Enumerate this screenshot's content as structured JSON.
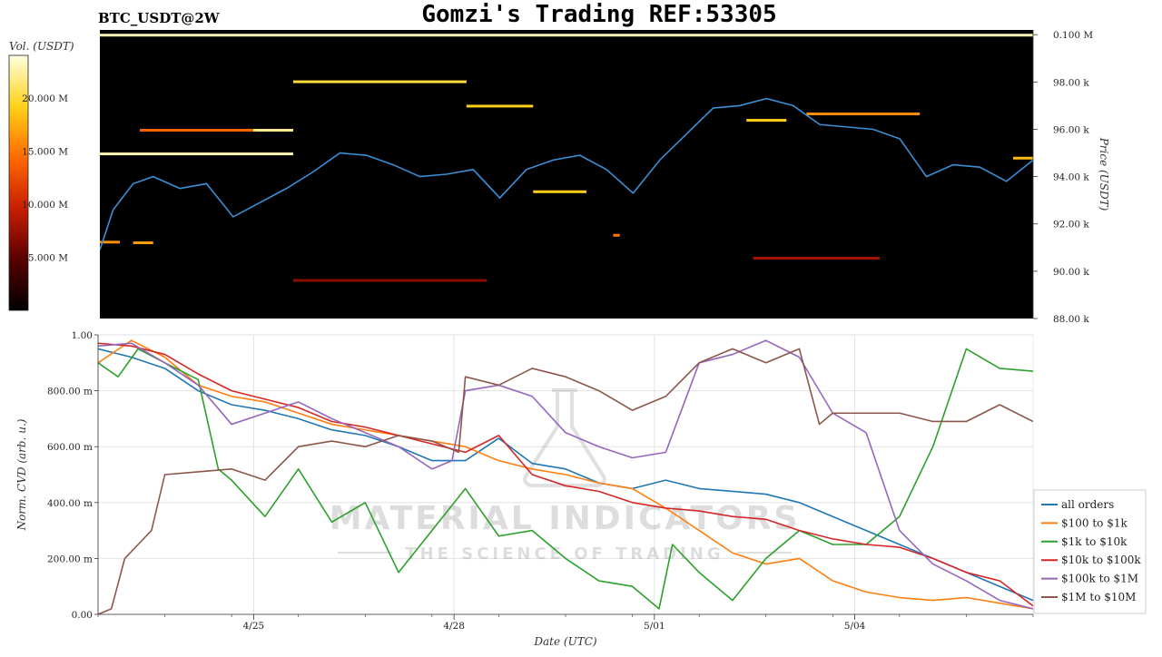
{
  "title": "Gomzi's Trading REF:53305",
  "symbol": "BTC_USDT@2W",
  "watermark": {
    "line1": "MATERIAL INDICATORS",
    "line2": "THE SCIENCE OF TRADING"
  },
  "colorbar": {
    "label": "Vol. (USDT)",
    "ticks": [
      "20.000 M",
      "15.000 M",
      "10.000 M",
      "5.000 M"
    ],
    "tick_values": [
      20,
      15,
      10,
      5
    ],
    "range": [
      0,
      24
    ],
    "colormap": [
      "#000000",
      "#5a0000",
      "#c81e00",
      "#ff6a00",
      "#ffd21a",
      "#ffffe0"
    ]
  },
  "chart_data": [
    {
      "type": "heatmap",
      "name": "orderbook-heatmap",
      "ylabel": "Price (USDT)",
      "y_ticks": [
        "0.100 M",
        "98.00 k",
        "96.00 k",
        "94.00 k",
        "92.00 k",
        "90.00 k",
        "88.00 k"
      ],
      "y_tick_values": [
        100000,
        98000,
        96000,
        94000,
        92000,
        90000,
        88000
      ],
      "ylim": [
        88000,
        100200
      ],
      "x_range": [
        0,
        14
      ],
      "price_line": {
        "color": "#3a8fd6",
        "x": [
          0,
          0.2,
          0.5,
          0.8,
          1.2,
          1.6,
          2.0,
          2.4,
          2.8,
          3.2,
          3.6,
          4.0,
          4.4,
          4.8,
          5.2,
          5.6,
          6.0,
          6.4,
          6.8,
          7.2,
          7.6,
          8.0,
          8.4,
          8.8,
          9.2,
          9.6,
          10.0,
          10.4,
          10.8,
          11.2,
          11.6,
          12.0,
          12.4,
          12.8,
          13.2,
          13.6,
          14.0
        ],
        "y": [
          90900,
          92600,
          93700,
          94000,
          93500,
          93700,
          92300,
          92900,
          93500,
          94200,
          95000,
          94900,
          94500,
          94000,
          94100,
          94300,
          93100,
          94300,
          94700,
          94900,
          94300,
          93300,
          94700,
          95800,
          96900,
          97000,
          97300,
          97000,
          96200,
          96100,
          96000,
          95600,
          94000,
          94500,
          94400,
          93800,
          94700
        ]
      },
      "levels": [
        {
          "y": 99980,
          "x0": 0,
          "x1": 14,
          "v": 23
        },
        {
          "y": 98010,
          "x0": 2.9,
          "x1": 5.5,
          "v": 20
        },
        {
          "y": 96980,
          "x0": 5.5,
          "x1": 6.5,
          "v": 19
        },
        {
          "y": 96650,
          "x0": 10.6,
          "x1": 12.3,
          "v": 16
        },
        {
          "y": 96380,
          "x0": 9.7,
          "x1": 10.3,
          "v": 19
        },
        {
          "y": 95960,
          "x0": 0.6,
          "x1": 2.3,
          "v": 14
        },
        {
          "y": 95960,
          "x0": 2.3,
          "x1": 2.9,
          "v": 22
        },
        {
          "y": 94960,
          "x0": 0,
          "x1": 2.9,
          "v": 23
        },
        {
          "y": 94780,
          "x0": 13.7,
          "x1": 14,
          "v": 18
        },
        {
          "y": 93360,
          "x0": 6.5,
          "x1": 7.3,
          "v": 19
        },
        {
          "y": 91520,
          "x0": 7.7,
          "x1": 7.8,
          "v": 15
        },
        {
          "y": 91230,
          "x0": 0,
          "x1": 0.3,
          "v": 16
        },
        {
          "y": 91200,
          "x0": 0.5,
          "x1": 0.8,
          "v": 17
        },
        {
          "y": 90550,
          "x0": 9.8,
          "x1": 11.7,
          "v": 8
        },
        {
          "y": 89610,
          "x0": 2.9,
          "x1": 5.8,
          "v": 7
        }
      ]
    },
    {
      "type": "line",
      "name": "cvd",
      "xlabel": "Date (UTC)",
      "ylabel": "Norm. CVD (arb. u.)",
      "ylim": [
        0,
        1
      ],
      "y_ticks": [
        "1.00",
        "800.00 m",
        "600.00 m",
        "400.00 m",
        "200.00 m",
        "0.00"
      ],
      "y_tick_values": [
        1,
        0.8,
        0.6,
        0.4,
        0.2,
        0
      ],
      "x_ticks": [
        "4/25",
        "4/28",
        "5/01",
        "5/04"
      ],
      "x_tick_values": [
        2.33,
        5.33,
        8.33,
        11.33
      ],
      "x_range": [
        0,
        14
      ],
      "series": [
        {
          "name": "all orders",
          "color": "#1f77b4",
          "x": [
            0,
            0.5,
            1,
            1.5,
            2,
            2.5,
            3,
            3.5,
            4,
            4.5,
            5,
            5.5,
            6,
            6.5,
            7,
            7.5,
            8,
            8.5,
            9,
            9.5,
            10,
            10.5,
            11,
            11.5,
            12,
            12.5,
            13,
            13.5,
            14
          ],
          "y": [
            0.95,
            0.92,
            0.88,
            0.8,
            0.75,
            0.73,
            0.7,
            0.66,
            0.64,
            0.6,
            0.55,
            0.55,
            0.63,
            0.54,
            0.52,
            0.47,
            0.45,
            0.48,
            0.45,
            0.44,
            0.43,
            0.4,
            0.35,
            0.3,
            0.25,
            0.2,
            0.15,
            0.1,
            0.05
          ]
        },
        {
          "name": "$100 to $1k",
          "color": "#ff7f0e",
          "x": [
            0,
            0.5,
            1,
            1.5,
            2,
            2.5,
            3,
            3.5,
            4,
            4.5,
            5,
            5.5,
            6,
            6.5,
            7,
            7.5,
            8,
            8.5,
            9,
            9.5,
            10,
            10.5,
            11,
            11.5,
            12,
            12.5,
            13,
            13.5,
            14
          ],
          "y": [
            0.9,
            0.98,
            0.92,
            0.82,
            0.78,
            0.76,
            0.72,
            0.68,
            0.66,
            0.64,
            0.62,
            0.6,
            0.55,
            0.52,
            0.5,
            0.47,
            0.45,
            0.38,
            0.3,
            0.22,
            0.18,
            0.2,
            0.12,
            0.08,
            0.06,
            0.05,
            0.06,
            0.04,
            0.02
          ]
        },
        {
          "name": "$1k to $10k",
          "color": "#2ca02c",
          "x": [
            0,
            0.3,
            0.6,
            1,
            1.5,
            1.8,
            2,
            2.5,
            3,
            3.5,
            4,
            4.5,
            5,
            5.5,
            6,
            6.5,
            7,
            7.5,
            8,
            8.4,
            8.6,
            9,
            9.5,
            10,
            10.5,
            11,
            11.5,
            12,
            12.5,
            13,
            13.5,
            14
          ],
          "y": [
            0.9,
            0.85,
            0.95,
            0.9,
            0.84,
            0.52,
            0.48,
            0.35,
            0.52,
            0.33,
            0.4,
            0.15,
            0.3,
            0.45,
            0.28,
            0.3,
            0.2,
            0.12,
            0.1,
            0.02,
            0.25,
            0.15,
            0.05,
            0.2,
            0.3,
            0.25,
            0.25,
            0.35,
            0.6,
            0.95,
            0.88,
            0.87
          ]
        },
        {
          "name": "$10k to $100k",
          "color": "#d62728",
          "x": [
            0,
            0.5,
            1,
            1.5,
            2,
            2.5,
            3,
            3.5,
            4,
            4.5,
            5,
            5.5,
            6,
            6.5,
            7,
            7.5,
            8,
            8.5,
            9,
            9.5,
            10,
            10.5,
            11,
            11.5,
            12,
            12.5,
            13,
            13.5,
            14
          ],
          "y": [
            0.97,
            0.96,
            0.93,
            0.86,
            0.8,
            0.77,
            0.74,
            0.69,
            0.67,
            0.64,
            0.61,
            0.58,
            0.64,
            0.5,
            0.46,
            0.44,
            0.4,
            0.38,
            0.37,
            0.35,
            0.34,
            0.3,
            0.27,
            0.25,
            0.24,
            0.2,
            0.15,
            0.12,
            0.03
          ]
        },
        {
          "name": "$100k to $1M",
          "color": "#9467bd",
          "x": [
            0,
            0.5,
            1,
            1.5,
            2,
            2.5,
            3,
            3.5,
            4,
            4.5,
            5,
            5.3,
            5.5,
            6,
            6.5,
            7,
            7.5,
            8,
            8.5,
            9,
            9.5,
            10,
            10.5,
            11,
            11.5,
            12,
            12.5,
            13,
            13.5,
            14
          ],
          "y": [
            0.96,
            0.97,
            0.9,
            0.82,
            0.68,
            0.72,
            0.76,
            0.7,
            0.65,
            0.6,
            0.52,
            0.55,
            0.8,
            0.82,
            0.78,
            0.65,
            0.6,
            0.56,
            0.58,
            0.9,
            0.93,
            0.98,
            0.92,
            0.72,
            0.65,
            0.3,
            0.18,
            0.12,
            0.05,
            0.02
          ]
        },
        {
          "name": "$1M to $10M",
          "color": "#8c564b",
          "x": [
            0,
            0.2,
            0.4,
            0.6,
            0.8,
            1,
            1.5,
            2,
            2.5,
            3,
            3.5,
            4,
            4.5,
            5,
            5.4,
            5.5,
            6,
            6.5,
            7,
            7.5,
            8,
            8.5,
            9,
            9.5,
            10,
            10.5,
            10.8,
            11,
            11.5,
            12,
            12.5,
            13,
            13.5,
            14
          ],
          "y": [
            0,
            0.02,
            0.2,
            0.25,
            0.3,
            0.5,
            0.51,
            0.52,
            0.48,
            0.6,
            0.62,
            0.6,
            0.64,
            0.62,
            0.58,
            0.85,
            0.82,
            0.88,
            0.85,
            0.8,
            0.73,
            0.78,
            0.9,
            0.95,
            0.9,
            0.95,
            0.68,
            0.72,
            0.72,
            0.72,
            0.69,
            0.69,
            0.75,
            0.69
          ]
        }
      ]
    }
  ]
}
